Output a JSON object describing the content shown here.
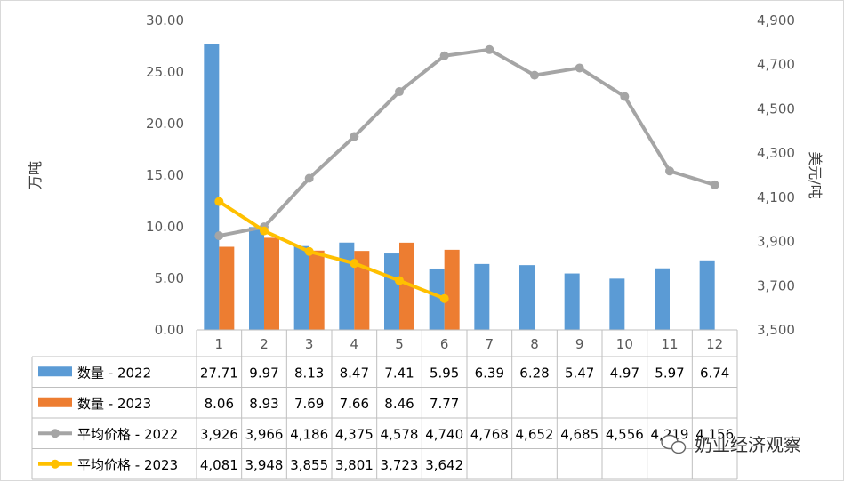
{
  "chart_data": {
    "type": "bar",
    "ylabel_left": "万吨",
    "ylabel_right": "美元/吨",
    "ylim_left": [
      0,
      30
    ],
    "ylim_right": [
      3500,
      4900
    ],
    "left_ticks": [
      "0.00",
      "5.00",
      "10.00",
      "15.00",
      "20.00",
      "25.00",
      "30.00"
    ],
    "right_ticks": [
      "3,500",
      "3,700",
      "3,900",
      "4,100",
      "4,300",
      "4,500",
      "4,700",
      "4,900"
    ],
    "categories": [
      "1",
      "2",
      "3",
      "4",
      "5",
      "6",
      "7",
      "8",
      "9",
      "10",
      "11",
      "12"
    ],
    "series": [
      {
        "name": "数量 - 2022",
        "kind": "bar",
        "axis": "left",
        "color": "#5B9BD5",
        "values": [
          27.71,
          9.97,
          8.13,
          8.47,
          7.41,
          5.95,
          6.39,
          6.28,
          5.47,
          4.97,
          5.97,
          6.74
        ],
        "labels": [
          "27.71",
          "9.97",
          "8.13",
          "8.47",
          "7.41",
          "5.95",
          "6.39",
          "6.28",
          "5.47",
          "4.97",
          "5.97",
          "6.74"
        ]
      },
      {
        "name": "数量 - 2023",
        "kind": "bar",
        "axis": "left",
        "color": "#ED7D31",
        "values": [
          8.06,
          8.93,
          7.69,
          7.66,
          8.46,
          7.77,
          null,
          null,
          null,
          null,
          null,
          null
        ],
        "labels": [
          "8.06",
          "8.93",
          "7.69",
          "7.66",
          "8.46",
          "7.77",
          "",
          "",
          "",
          "",
          "",
          ""
        ]
      },
      {
        "name": "平均价格 - 2022",
        "kind": "line",
        "axis": "right",
        "color": "#A5A5A5",
        "values": [
          3926,
          3966,
          4186,
          4375,
          4578,
          4740,
          4768,
          4652,
          4685,
          4556,
          4219,
          4156
        ],
        "labels": [
          "3,926",
          "3,966",
          "4,186",
          "4,375",
          "4,578",
          "4,740",
          "4,768",
          "4,652",
          "4,685",
          "4,556",
          "4,219",
          "4,156"
        ]
      },
      {
        "name": "平均价格 - 2023",
        "kind": "line",
        "axis": "right",
        "color": "#FFC000",
        "values": [
          4081,
          3948,
          3855,
          3801,
          3723,
          3642,
          null,
          null,
          null,
          null,
          null,
          null
        ],
        "labels": [
          "4,081",
          "3,948",
          "3,855",
          "3,801",
          "3,723",
          "3,642",
          "",
          "",
          "",
          "",
          "",
          ""
        ]
      }
    ],
    "gridlines": false,
    "data_table": true
  },
  "watermark": {
    "text": "奶业经济观察",
    "icon": "wechat-icon"
  }
}
